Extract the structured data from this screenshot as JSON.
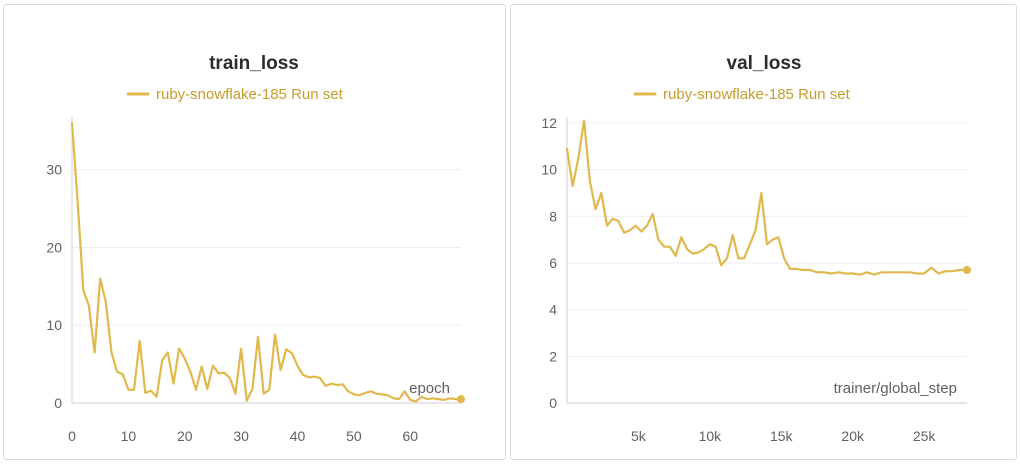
{
  "colors": {
    "series": "#e1b84c",
    "legend_text": "#c69d2b"
  },
  "chart_data": [
    {
      "type": "line",
      "title": "train_loss",
      "xlabel": "epoch",
      "ylabel": "",
      "xlim": [
        0,
        69
      ],
      "ylim": [
        0,
        36
      ],
      "xticks": [
        "0",
        "10",
        "20",
        "30",
        "40",
        "50",
        "60"
      ],
      "yticks": [
        "0",
        "10",
        "20",
        "30"
      ],
      "grid": true,
      "legend": "top-center",
      "series": [
        {
          "name": "ruby-snowflake-185 Run set",
          "x": [
            0,
            1,
            2,
            3,
            4,
            5,
            6,
            7,
            8,
            9,
            10,
            11,
            12,
            13,
            14,
            15,
            16,
            17,
            18,
            19,
            20,
            21,
            22,
            23,
            24,
            25,
            26,
            27,
            28,
            29,
            30,
            31,
            32,
            33,
            34,
            35,
            36,
            37,
            38,
            39,
            40,
            41,
            42,
            43,
            44,
            45,
            46,
            47,
            48,
            49,
            50,
            51,
            52,
            53,
            54,
            55,
            56,
            57,
            58,
            59,
            60,
            61,
            62,
            63,
            64,
            65,
            66,
            67,
            68,
            69
          ],
          "y": [
            36,
            26,
            14.5,
            12.5,
            6.5,
            16,
            13,
            6.5,
            4,
            3.7,
            1.7,
            1.7,
            8,
            1.3,
            1.6,
            0.8,
            5.5,
            6.5,
            2.5,
            7,
            5.7,
            4,
            1.7,
            4.7,
            1.8,
            4.8,
            3.8,
            3.9,
            3.2,
            1.2,
            7,
            0.3,
            1.8,
            8.5,
            1.2,
            1.7,
            8.8,
            4.2,
            6.9,
            6.4,
            4.8,
            3.6,
            3.3,
            3.4,
            3.2,
            2.2,
            2.5,
            2.3,
            2.4,
            1.5,
            1.1,
            1.0,
            1.3,
            1.5,
            1.2,
            1.1,
            1.0,
            0.6,
            0.5,
            1.5,
            0.4,
            0.2,
            0.8,
            0.5,
            0.6,
            0.5,
            0.4,
            0.6,
            0.5,
            0.5
          ]
        }
      ]
    },
    {
      "type": "line",
      "title": "val_loss",
      "xlabel": "trainer/global_step",
      "ylabel": "",
      "xlim": [
        0,
        28000
      ],
      "ylim": [
        0,
        12
      ],
      "xticks": [
        "5k",
        "10k",
        "15k",
        "20k",
        "25k"
      ],
      "yticks": [
        "0",
        "2",
        "4",
        "6",
        "8",
        "10",
        "12"
      ],
      "grid": true,
      "legend": "top-center",
      "series": [
        {
          "name": "ruby-snowflake-185 Run set",
          "x": [
            0,
            400,
            800,
            1200,
            1600,
            2000,
            2400,
            2800,
            3200,
            3600,
            4000,
            4400,
            4800,
            5200,
            5600,
            6000,
            6400,
            6800,
            7200,
            7600,
            8000,
            8400,
            8800,
            9200,
            9600,
            10000,
            10400,
            10800,
            11200,
            11600,
            12000,
            12400,
            12800,
            13200,
            13600,
            14000,
            14400,
            14800,
            15200,
            15600,
            16000,
            16500,
            17000,
            17500,
            18000,
            18500,
            19000,
            19500,
            20000,
            20500,
            21000,
            21500,
            22000,
            22500,
            23000,
            23500,
            24000,
            24500,
            25000,
            25500,
            26000,
            26500,
            27000,
            27500,
            28000
          ],
          "y": [
            10.9,
            9.3,
            10.5,
            12.1,
            9.5,
            8.3,
            9.0,
            7.6,
            7.9,
            7.8,
            7.3,
            7.4,
            7.6,
            7.35,
            7.6,
            8.1,
            7.0,
            6.7,
            6.7,
            6.3,
            7.1,
            6.6,
            6.4,
            6.45,
            6.6,
            6.8,
            6.7,
            5.9,
            6.2,
            7.2,
            6.2,
            6.2,
            6.8,
            7.4,
            9.0,
            6.8,
            7.0,
            7.1,
            6.2,
            5.75,
            5.75,
            5.7,
            5.7,
            5.6,
            5.6,
            5.55,
            5.6,
            5.55,
            5.55,
            5.5,
            5.6,
            5.5,
            5.6,
            5.6,
            5.6,
            5.6,
            5.6,
            5.55,
            5.55,
            5.8,
            5.55,
            5.65,
            5.65,
            5.7,
            5.7
          ]
        }
      ]
    }
  ]
}
